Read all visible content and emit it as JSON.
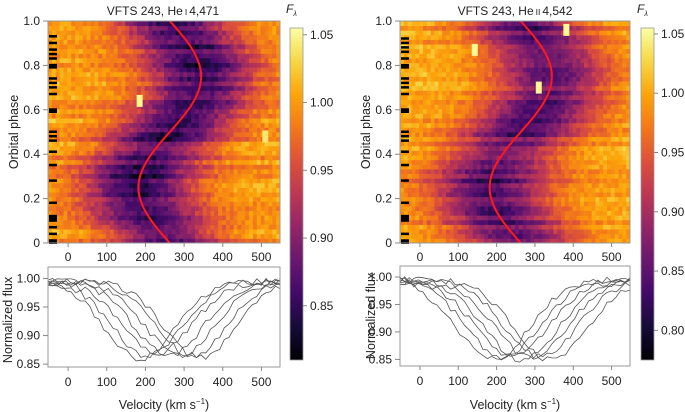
{
  "chart_data": [
    {
      "id": "left",
      "type": "heatmap",
      "title": "VFTS 243, He I 4,471",
      "title_parts": {
        "prefix": "VFTS 243, He",
        "ion": "I",
        "wavelength": "4,471"
      },
      "xlabel": "",
      "ylabel": "Orbital phase",
      "xlim": [
        -52,
        548
      ],
      "ylim": [
        0,
        1.0
      ],
      "xticks": [
        "0",
        "100",
        "200",
        "300",
        "400",
        "500"
      ],
      "xtick_values": [
        0,
        100,
        200,
        300,
        400,
        500
      ],
      "yticks": [
        "0",
        "0.2",
        "0.4",
        "0.6",
        "0.8",
        "1.0"
      ],
      "ytick_values": [
        0,
        0.2,
        0.4,
        0.6,
        0.8,
        1.0
      ],
      "colorbar": {
        "label": "Fλ",
        "colormap": "inferno",
        "range": [
          0.81,
          1.055
        ],
        "ticks": [
          "0.85",
          "0.90",
          "0.95",
          "1.00",
          "1.05"
        ],
        "tick_values": [
          0.85,
          0.9,
          0.95,
          1.0,
          1.05
        ]
      },
      "rv_curve": {
        "color": "#ff1a1a",
        "systemic_velocity": 263,
        "semi_amplitude": 81,
        "phase_of_min": 0.25,
        "description": "Sinusoidal radial-velocity fit; min ~182 km/s at phase 0.25, max ~344 km/s at phase 0.75"
      },
      "line_profile": {
        "center_velocity": 263,
        "depth": 0.14,
        "half_width": 180
      },
      "observed_phases": [
        0.0,
        0.01,
        0.04,
        0.07,
        0.1,
        0.11,
        0.12,
        0.18,
        0.28,
        0.35,
        0.41,
        0.46,
        0.48,
        0.5,
        0.59,
        0.6,
        0.67,
        0.7,
        0.72,
        0.74,
        0.79,
        0.8,
        0.83,
        0.85,
        0.87,
        0.9,
        0.93
      ],
      "bright_features": [
        {
          "velocity": 185,
          "phase": 0.64,
          "value": 1.05
        },
        {
          "velocity": 510,
          "phase": 0.48,
          "value": 1.04
        }
      ]
    },
    {
      "id": "right",
      "type": "heatmap",
      "title": "VFTS 243, He II 4,542",
      "title_parts": {
        "prefix": "VFTS 243, He",
        "ion": "II",
        "wavelength": "4,542"
      },
      "xlabel": "",
      "ylabel": "Orbital phase",
      "xlim": [
        -52,
        548
      ],
      "ylim": [
        0,
        1.0
      ],
      "xticks": [
        "0",
        "100",
        "200",
        "300",
        "400",
        "500"
      ],
      "xtick_values": [
        0,
        100,
        200,
        300,
        400,
        500
      ],
      "yticks": [
        "0",
        "0.2",
        "0.4",
        "0.6",
        "0.8",
        "1.0"
      ],
      "ytick_values": [
        0,
        0.2,
        0.4,
        0.6,
        0.8,
        1.0
      ],
      "colorbar": {
        "label": "Fλ",
        "colormap": "inferno",
        "range": [
          0.775,
          1.055
        ],
        "ticks": [
          "0.80",
          "0.85",
          "0.90",
          "0.95",
          "1.00",
          "1.05"
        ],
        "tick_values": [
          0.8,
          0.85,
          0.9,
          0.95,
          1.0,
          1.05
        ]
      },
      "rv_curve": {
        "color": "#ff1a1a",
        "systemic_velocity": 263,
        "semi_amplitude": 81,
        "phase_of_min": 0.25,
        "description": "Sinusoidal radial-velocity fit; min ~182 km/s at phase 0.25, max ~344 km/s at phase 0.75"
      },
      "line_profile": {
        "center_velocity": 263,
        "depth": 0.15,
        "half_width": 190
      },
      "observed_phases": [
        0.0,
        0.01,
        0.04,
        0.1,
        0.11,
        0.12,
        0.18,
        0.28,
        0.35,
        0.41,
        0.46,
        0.48,
        0.5,
        0.59,
        0.6,
        0.67,
        0.7,
        0.72,
        0.74,
        0.79,
        0.8,
        0.83,
        0.86,
        0.88,
        0.9,
        0.92
      ],
      "bright_features": [
        {
          "velocity": 382,
          "phase": 0.96,
          "value": 1.05
        },
        {
          "velocity": 143,
          "phase": 0.87,
          "value": 1.05
        },
        {
          "velocity": 310,
          "phase": 0.7,
          "value": 1.05
        }
      ]
    },
    {
      "id": "left-profiles",
      "type": "line",
      "title": "",
      "xlabel": "Velocity (km s−1)",
      "ylabel": "Normalized flux",
      "xlim": [
        -52,
        548
      ],
      "ylim": [
        0.845,
        1.02
      ],
      "xticks": [
        "0",
        "100",
        "200",
        "300",
        "400",
        "500"
      ],
      "xtick_values": [
        0,
        100,
        200,
        300,
        400,
        500
      ],
      "yticks": [
        "0.85",
        "0.90",
        "0.95",
        "1.00"
      ],
      "ytick_values": [
        0.85,
        0.9,
        0.95,
        1.0
      ],
      "line_color": "#555555",
      "series_centers": [
        185,
        205,
        230,
        260,
        290,
        320,
        340
      ],
      "series_depth": [
        0.135,
        0.13,
        0.125,
        0.13,
        0.13,
        0.13,
        0.135
      ],
      "series_half_width": 190
    },
    {
      "id": "right-profiles",
      "type": "line",
      "title": "",
      "xlabel": "Velocity (km s−1)",
      "ylabel": "Normalized flux",
      "xlim": [
        -52,
        548
      ],
      "ylim": [
        0.838,
        1.02
      ],
      "xticks": [
        "0",
        "100",
        "200",
        "300",
        "400",
        "500"
      ],
      "xtick_values": [
        0,
        100,
        200,
        300,
        400,
        500
      ],
      "yticks": [
        "0.85",
        "0.90",
        "0.95",
        "1.00"
      ],
      "ytick_values": [
        0.85,
        0.9,
        0.95,
        1.0
      ],
      "line_color": "#555555",
      "series_centers": [
        190,
        215,
        240,
        265,
        290,
        315,
        340
      ],
      "series_depth": [
        0.145,
        0.14,
        0.14,
        0.145,
        0.14,
        0.14,
        0.145
      ],
      "series_half_width": 200
    }
  ],
  "labels": {
    "colorbar_symbol": "F",
    "colorbar_subscript": "λ",
    "velocity_label_main": "Velocity (km s",
    "velocity_label_sup": "−1",
    "velocity_label_end": ")",
    "orbital_phase": "Orbital phase",
    "normalized_flux": "Normalized flux"
  }
}
